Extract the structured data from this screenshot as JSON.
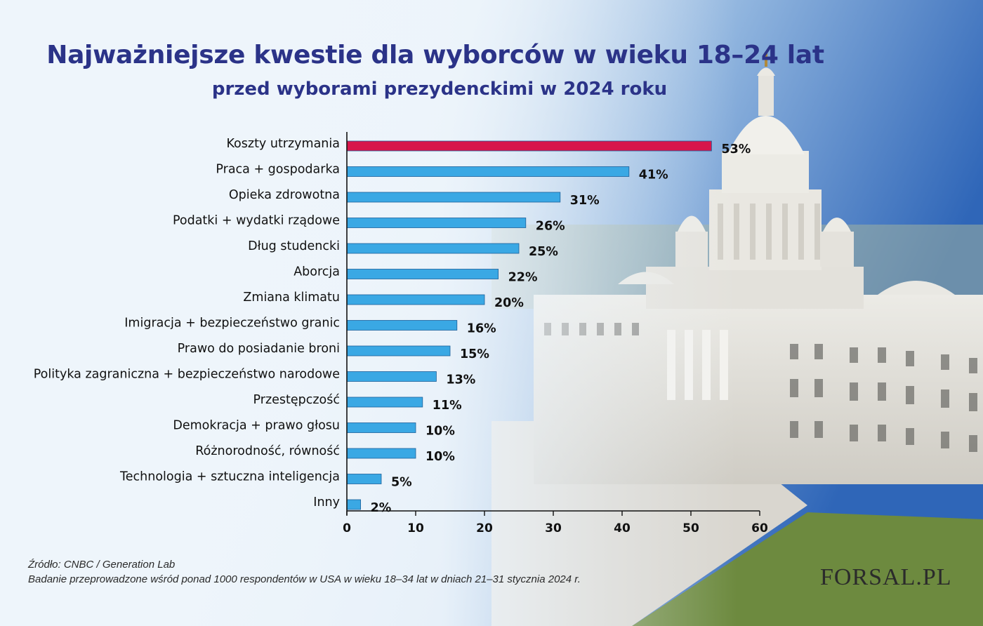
{
  "header": {
    "title": "Najważniejsze kwestie dla wyborców w wieku 18–24 lat",
    "subtitle": "przed wyborami prezydenckimi w 2024 roku"
  },
  "chart_data": {
    "type": "bar",
    "orientation": "horizontal",
    "title": "Najważniejsze kwestie dla wyborców w wieku 18–24 lat",
    "subtitle": "przed wyborami prezydenckimi w 2024 roku",
    "categories": [
      "Koszty utrzymania",
      "Praca + gospodarka",
      "Opieka zdrowotna",
      "Podatki + wydatki rządowe",
      "Dług studencki",
      "Aborcja",
      "Zmiana klimatu",
      "Imigracja + bezpieczeństwo granic",
      "Prawo do posiadanie broni",
      "Polityka zagraniczna + bezpieczeństwo narodowe",
      "Przestępczość",
      "Demokracja + prawo głosu",
      "Różnorodność, równość",
      "Technologia + sztuczna inteligencja",
      "Inny"
    ],
    "values": [
      53,
      41,
      31,
      26,
      25,
      22,
      20,
      16,
      15,
      13,
      11,
      10,
      10,
      5,
      2
    ],
    "value_labels": [
      "53%",
      "41%",
      "31%",
      "26%",
      "25%",
      "22%",
      "20%",
      "16%",
      "15%",
      "13%",
      "11%",
      "10%",
      "10%",
      "5%",
      "2%"
    ],
    "xlim": [
      0,
      60
    ],
    "xticks": [
      0,
      10,
      20,
      30,
      40,
      50,
      60
    ],
    "grid": false,
    "highlight_color": "#d7154b",
    "bar_color": "#3aa8e4"
  },
  "footer": {
    "source": "Źródło: CNBC / Generation Lab",
    "note": "Badanie przeprowadzone wśród ponad 1000 respondentów w USA w wieku 18–34 lat w dniach 21–31 stycznia 2024 r."
  },
  "logo": {
    "text": "FORSAL.PL"
  },
  "colors": {
    "title": "#2b3388",
    "sky": "#3f78c4"
  }
}
